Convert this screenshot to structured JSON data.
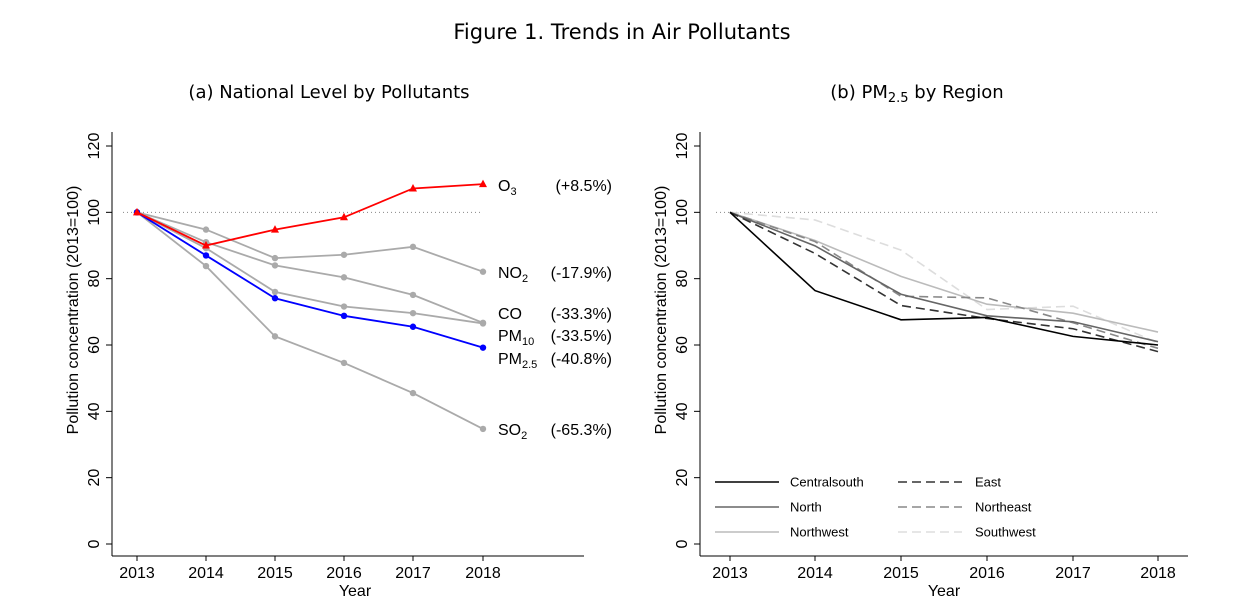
{
  "figure_title": "Figure 1. Trends in Air Pollutants",
  "chart_data": [
    {
      "type": "line",
      "title": "(a) National Level by Pollutants",
      "xlabel": "Year",
      "ylabel": "Pollution concentration (2013=100)",
      "x": [
        2013,
        2014,
        2015,
        2016,
        2017,
        2018
      ],
      "yticks": [
        0,
        20,
        40,
        60,
        80,
        100,
        120
      ],
      "ylim": [
        0,
        120
      ],
      "reference_line": 100,
      "series": [
        {
          "key": "o3",
          "label_main": "O",
          "label_sub": "3",
          "change": "(+8.5%)",
          "color": "#ff0000",
          "marker": "triangle",
          "values": [
            100,
            90,
            94.8,
            98.5,
            107.2,
            108.5
          ]
        },
        {
          "key": "no2",
          "label_main": "NO",
          "label_sub": "2",
          "change": "(-17.9%)",
          "color": "#aaaaaa",
          "marker": "circle",
          "values": [
            100,
            94.8,
            86.2,
            87.2,
            89.6,
            82.1
          ]
        },
        {
          "key": "co",
          "label_main": "CO",
          "label_sub": "",
          "change": "(-33.3%)",
          "color": "#aaaaaa",
          "marker": "circle",
          "values": [
            100,
            91,
            84,
            80.4,
            75.1,
            66.7
          ]
        },
        {
          "key": "pm10",
          "label_main": "PM",
          "label_sub": "10",
          "change": "(-33.5%)",
          "color": "#aaaaaa",
          "marker": "circle",
          "values": [
            100,
            89.2,
            76,
            71.6,
            69.6,
            66.5
          ]
        },
        {
          "key": "pm25",
          "label_main": "PM",
          "label_sub": "2.5",
          "change": "(-40.8%)",
          "color": "#0000ff",
          "marker": "circle",
          "values": [
            100,
            87,
            74.1,
            68.8,
            65.5,
            59.2
          ]
        },
        {
          "key": "so2",
          "label_main": "SO",
          "label_sub": "2",
          "change": "(-65.3%)",
          "color": "#aaaaaa",
          "marker": "circle",
          "values": [
            100,
            83.8,
            62.6,
            54.6,
            45.5,
            34.7
          ]
        }
      ]
    },
    {
      "type": "line",
      "title_main": "(b) PM",
      "title_sub": "2.5",
      "title_rest": " by Region",
      "xlabel": "Year",
      "ylabel": "Pollution concentration (2013=100)",
      "x": [
        2013,
        2014,
        2015,
        2016,
        2017,
        2018
      ],
      "yticks": [
        0,
        20,
        40,
        60,
        80,
        100,
        120
      ],
      "ylim": [
        0,
        120
      ],
      "reference_line": 100,
      "legend_placement": "bottom-left",
      "series": [
        {
          "name": "Centralsouth",
          "color": "#000000",
          "dash": "",
          "values": [
            100,
            76.4,
            67.6,
            68.3,
            62.6,
            60.0
          ]
        },
        {
          "name": "East",
          "color": "#333333",
          "dash": "9,5",
          "values": [
            100,
            87.6,
            71.9,
            68.0,
            64.9,
            58.0
          ]
        },
        {
          "name": "North",
          "color": "#666666",
          "dash": "",
          "values": [
            100,
            89.9,
            75.3,
            68.8,
            67.0,
            61.0
          ]
        },
        {
          "name": "Northeast",
          "color": "#888888",
          "dash": "9,5",
          "values": [
            100,
            91.2,
            74.7,
            74.2,
            66.7,
            59.0
          ]
        },
        {
          "name": "Northwest",
          "color": "#bbbbbb",
          "dash": "",
          "values": [
            100,
            91.5,
            80.7,
            72.3,
            69.6,
            63.9
          ]
        },
        {
          "name": "Southwest",
          "color": "#dddddd",
          "dash": "9,5",
          "values": [
            100,
            97.7,
            88.6,
            70.7,
            71.7,
            60.6
          ]
        }
      ]
    }
  ]
}
